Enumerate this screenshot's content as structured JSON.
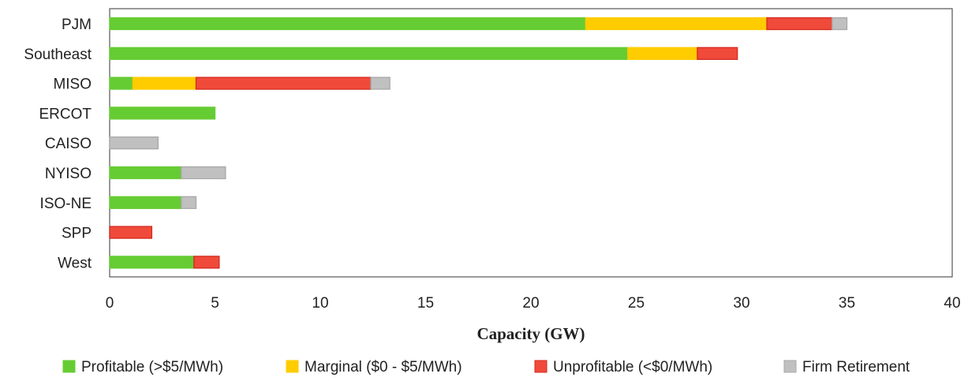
{
  "chart_data": {
    "type": "bar",
    "orientation": "horizontal",
    "stacked": true,
    "title": "",
    "xlabel": "Capacity (GW)",
    "ylabel": "",
    "xlim": [
      0,
      40
    ],
    "x_ticks": [
      0,
      5,
      10,
      15,
      20,
      25,
      30,
      35,
      40
    ],
    "grid": false,
    "legend_position": "bottom",
    "categories": [
      "PJM",
      "Southeast",
      "MISO",
      "ERCOT",
      "CAISO",
      "NYISO",
      "ISO-NE",
      "SPP",
      "West"
    ],
    "series": [
      {
        "name": "Profitable (>$5/MWh)",
        "color": "#66cc33",
        "border": "#66cc33",
        "values": [
          22.6,
          24.6,
          1.1,
          5.0,
          0,
          3.4,
          3.4,
          0,
          4.0
        ]
      },
      {
        "name": "Marginal ($0 - $5/MWh)",
        "color": "#ffcc00",
        "border": "#ffcc00",
        "values": [
          8.6,
          3.3,
          3.0,
          0,
          0,
          0,
          0,
          0,
          0
        ]
      },
      {
        "name": "Unprofitable (<$0/MWh)",
        "color": "#f04a3a",
        "border": "#d42a1f",
        "values": [
          3.1,
          1.9,
          8.3,
          0,
          0,
          0,
          0,
          2.0,
          1.2
        ]
      },
      {
        "name": "Firm Retirement",
        "color": "#c0c0c0",
        "border": "#a8a8a8",
        "values": [
          0.7,
          0,
          0.9,
          0,
          2.3,
          2.1,
          0.7,
          0,
          0
        ]
      }
    ]
  }
}
